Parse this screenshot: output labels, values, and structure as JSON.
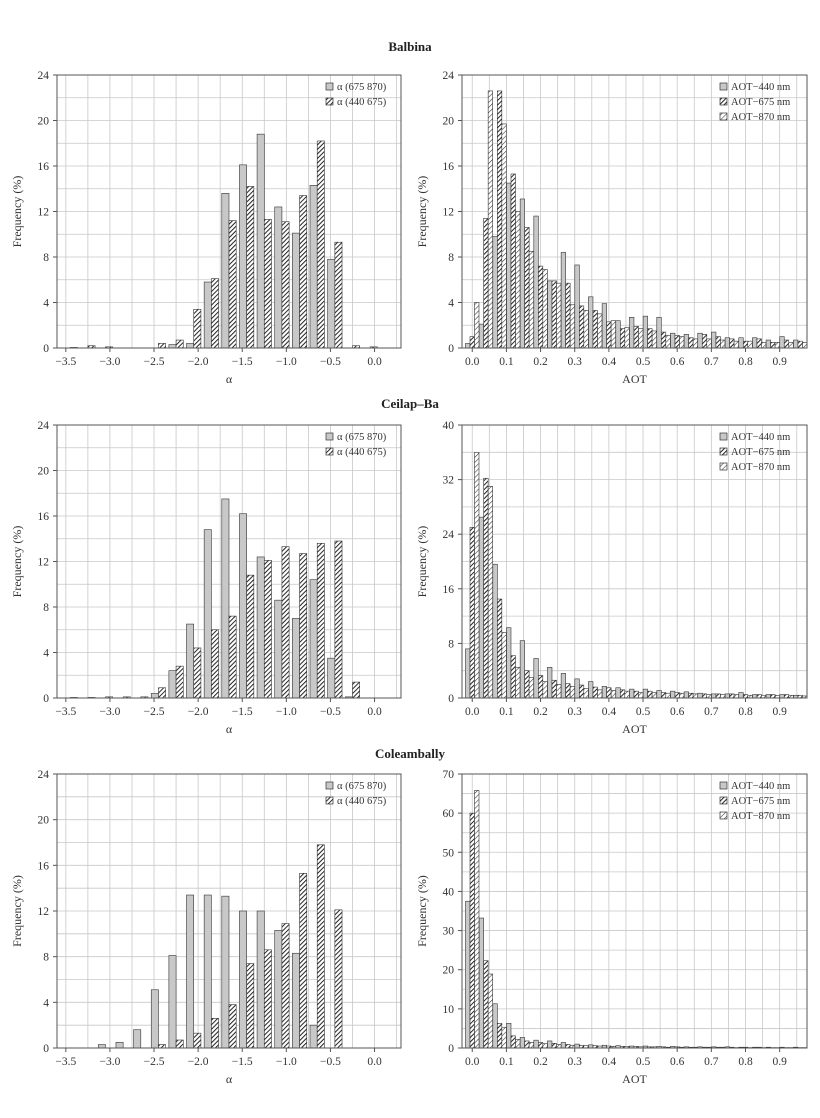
{
  "figure": {
    "sites": [
      "Balbina",
      "Ceilap–Ba",
      "Coleambally"
    ]
  },
  "colors": {
    "grid": "#c8c8c8",
    "axis": "#555555",
    "bar_solid": "#c8c8c8",
    "bar_stroke": "#333333"
  },
  "chart_data": [
    {
      "type": "bar",
      "panel": "Balbina-alpha",
      "xlabel": "α",
      "ylabel": "Frequency (%)",
      "xlim": [
        -3.6,
        0.3
      ],
      "ylim": [
        0,
        24
      ],
      "xticks": [
        -3.5,
        -3.0,
        -2.5,
        -2.0,
        -1.5,
        -1.0,
        -0.5,
        0.0
      ],
      "xtick_labels": [
        "−3.5",
        "−3.0",
        "−2.5",
        "−2.0",
        "−1.5",
        "−1.0",
        "−0.5",
        "0.0"
      ],
      "yticks": [
        0,
        4,
        8,
        12,
        16,
        20,
        24
      ],
      "legend_position": "top-right",
      "x": [
        -3.45,
        -3.25,
        -3.05,
        -2.85,
        -2.65,
        -2.45,
        -2.25,
        -2.05,
        -1.85,
        -1.65,
        -1.45,
        -1.25,
        -1.05,
        -0.85,
        -0.65,
        -0.45,
        -0.25,
        -0.05,
        0.15
      ],
      "series": [
        {
          "name": "α (675 870)",
          "pattern": "solid",
          "values": [
            0,
            0,
            0,
            0,
            0,
            0,
            0.3,
            0.4,
            5.8,
            13.6,
            16.1,
            18.8,
            12.4,
            10.1,
            14.3,
            7.8,
            0,
            0,
            0
          ]
        },
        {
          "name": "α (440 675)",
          "pattern": "hatch-dense",
          "values": [
            0.05,
            0.2,
            0.1,
            0,
            0,
            0.4,
            0.7,
            3.4,
            6.1,
            11.2,
            14.2,
            11.3,
            11.1,
            13.4,
            18.2,
            9.3,
            0.2,
            0.1,
            0
          ]
        }
      ]
    },
    {
      "type": "bar",
      "panel": "Balbina-aot",
      "xlabel": "AOT",
      "ylabel": "Frequency (%)",
      "xlim": [
        -0.03,
        0.98
      ],
      "ylim": [
        0,
        24
      ],
      "xticks": [
        0,
        0.1,
        0.2,
        0.3,
        0.4,
        0.5,
        0.6,
        0.7,
        0.8,
        0.9
      ],
      "xtick_labels": [
        "0.0",
        "0.1",
        "0.2",
        "0.3",
        "0.4",
        "0.5",
        "0.6",
        "0.7",
        "0.8",
        "0.9"
      ],
      "yticks": [
        0,
        4,
        8,
        12,
        16,
        20,
        24
      ],
      "legend_position": "top-right",
      "x": [
        0.0,
        0.04,
        0.08,
        0.12,
        0.16,
        0.2,
        0.24,
        0.28,
        0.32,
        0.36,
        0.4,
        0.44,
        0.48,
        0.52,
        0.56,
        0.6,
        0.64,
        0.68,
        0.72,
        0.76,
        0.8,
        0.84,
        0.88,
        0.92,
        0.96
      ],
      "series": [
        {
          "name": "AOT−440 nm",
          "pattern": "solid",
          "values": [
            0.4,
            2.1,
            9.8,
            14.5,
            13.1,
            11.6,
            5.9,
            8.4,
            7.3,
            4.5,
            3.9,
            2.4,
            2.7,
            2.8,
            2.7,
            1.3,
            1.2,
            1.3,
            1.4,
            0.9,
            0.9,
            0.9,
            0.7,
            1.0,
            0.7
          ]
        },
        {
          "name": "AOT−675 nm",
          "pattern": "hatch-dense",
          "values": [
            1.0,
            11.4,
            22.6,
            15.3,
            10.6,
            7.2,
            5.9,
            5.7,
            3.7,
            3.3,
            2.3,
            1.7,
            1.9,
            1.7,
            1.4,
            1.1,
            0.9,
            1.2,
            1.0,
            0.8,
            0.6,
            0.8,
            0.5,
            0.7,
            0.6
          ]
        },
        {
          "name": "AOT−870 nm",
          "pattern": "hatch-sparse",
          "values": [
            4.0,
            22.6,
            19.7,
            12.0,
            8.5,
            6.9,
            5.7,
            3.8,
            3.3,
            3.0,
            2.4,
            1.8,
            1.7,
            1.5,
            1.1,
            1.0,
            0.8,
            0.8,
            0.7,
            0.6,
            0.6,
            0.5,
            0.5,
            0.5,
            0.5
          ]
        }
      ]
    },
    {
      "type": "bar",
      "panel": "Ceilap-alpha",
      "xlabel": "α",
      "ylabel": "Frequency (%)",
      "xlim": [
        -3.6,
        0.3
      ],
      "ylim": [
        0,
        24
      ],
      "xticks": [
        -3.5,
        -3.0,
        -2.5,
        -2.0,
        -1.5,
        -1.0,
        -0.5,
        0.0
      ],
      "xtick_labels": [
        "−3.5",
        "−3.0",
        "−2.5",
        "−2.0",
        "−1.5",
        "−1.0",
        "−0.5",
        "0.0"
      ],
      "yticks": [
        0,
        4,
        8,
        12,
        16,
        20,
        24
      ],
      "legend_position": "top-right",
      "x": [
        -3.45,
        -3.25,
        -3.05,
        -2.85,
        -2.65,
        -2.45,
        -2.25,
        -2.05,
        -1.85,
        -1.65,
        -1.45,
        -1.25,
        -1.05,
        -0.85,
        -0.65,
        -0.45,
        -0.25,
        -0.05,
        0.15
      ],
      "series": [
        {
          "name": "α (675 870)",
          "pattern": "solid",
          "values": [
            0,
            0,
            0,
            0,
            0,
            0.4,
            2.4,
            6.5,
            14.8,
            17.5,
            16.2,
            12.4,
            8.6,
            7.0,
            10.4,
            3.5,
            0.1,
            0,
            0
          ]
        },
        {
          "name": "α (440 675)",
          "pattern": "hatch-dense",
          "values": [
            0.05,
            0.05,
            0.1,
            0.1,
            0.1,
            0.9,
            2.8,
            4.4,
            6.0,
            7.2,
            10.8,
            12.1,
            13.3,
            12.7,
            13.6,
            13.8,
            1.4,
            0,
            0
          ]
        }
      ]
    },
    {
      "type": "bar",
      "panel": "Ceilap-aot",
      "xlabel": "AOT",
      "ylabel": "Frequency (%)",
      "xlim": [
        -0.03,
        0.98
      ],
      "ylim": [
        0,
        40
      ],
      "xticks": [
        0,
        0.1,
        0.2,
        0.3,
        0.4,
        0.5,
        0.6,
        0.7,
        0.8,
        0.9
      ],
      "xtick_labels": [
        "0.0",
        "0.1",
        "0.2",
        "0.3",
        "0.4",
        "0.5",
        "0.6",
        "0.7",
        "0.8",
        "0.9"
      ],
      "yticks": [
        0,
        8,
        16,
        24,
        32,
        40
      ],
      "legend_position": "top-right",
      "x": [
        0.0,
        0.04,
        0.08,
        0.12,
        0.16,
        0.2,
        0.24,
        0.28,
        0.32,
        0.36,
        0.4,
        0.44,
        0.48,
        0.52,
        0.56,
        0.6,
        0.64,
        0.68,
        0.72,
        0.76,
        0.8,
        0.84,
        0.88,
        0.92,
        0.96
      ],
      "series": [
        {
          "name": "AOT−440 nm",
          "pattern": "solid",
          "values": [
            7.2,
            26.5,
            19.6,
            10.3,
            8.4,
            5.8,
            4.5,
            3.6,
            2.8,
            2.4,
            1.7,
            1.5,
            1.3,
            1.3,
            1.1,
            1.0,
            0.9,
            0.7,
            0.6,
            0.6,
            0.8,
            0.5,
            0.5,
            0.5,
            0.4
          ]
        },
        {
          "name": "AOT−675 nm",
          "pattern": "hatch-dense",
          "values": [
            25.0,
            32.2,
            14.5,
            6.2,
            4.0,
            3.3,
            2.6,
            2.1,
            1.9,
            1.6,
            1.5,
            1.2,
            1.0,
            1.0,
            0.8,
            0.8,
            0.7,
            0.6,
            0.6,
            0.6,
            0.5,
            0.5,
            0.5,
            0.5,
            0.4
          ]
        },
        {
          "name": "AOT−870 nm",
          "pattern": "hatch-sparse",
          "values": [
            36.0,
            31.0,
            9.6,
            4.5,
            3.0,
            2.4,
            2.0,
            1.7,
            1.4,
            1.2,
            1.1,
            1.0,
            0.8,
            0.8,
            0.7,
            0.7,
            0.6,
            0.5,
            0.5,
            0.5,
            0.4,
            0.4,
            0.4,
            0.4,
            0.3
          ]
        }
      ]
    },
    {
      "type": "bar",
      "panel": "Coleambally-alpha",
      "xlabel": "α",
      "ylabel": "Frequency (%)",
      "xlim": [
        -3.6,
        0.3
      ],
      "ylim": [
        0,
        24
      ],
      "xticks": [
        -3.5,
        -3.0,
        -2.5,
        -2.0,
        -1.5,
        -1.0,
        -0.5,
        0.0
      ],
      "xtick_labels": [
        "−3.5",
        "−3.0",
        "−2.5",
        "−2.0",
        "−1.5",
        "−1.0",
        "−0.5",
        "0.0"
      ],
      "yticks": [
        0,
        4,
        8,
        12,
        16,
        20,
        24
      ],
      "legend_position": "top-right",
      "x": [
        -3.45,
        -3.25,
        -3.05,
        -2.85,
        -2.65,
        -2.45,
        -2.25,
        -2.05,
        -1.85,
        -1.65,
        -1.45,
        -1.25,
        -1.05,
        -0.85,
        -0.65,
        -0.45,
        -0.25,
        -0.05,
        0.15
      ],
      "series": [
        {
          "name": "α (675 870)",
          "pattern": "solid",
          "values": [
            0,
            0,
            0.3,
            0.5,
            1.6,
            5.1,
            8.1,
            13.4,
            13.4,
            13.3,
            12.0,
            12.0,
            10.3,
            8.3,
            2.0,
            0,
            0,
            0,
            0
          ]
        },
        {
          "name": "α (440 675)",
          "pattern": "hatch-dense",
          "values": [
            0,
            0,
            0,
            0,
            0,
            0.3,
            0.7,
            1.3,
            2.6,
            3.8,
            7.4,
            8.6,
            10.9,
            15.3,
            17.8,
            12.1,
            0,
            0,
            0
          ]
        }
      ]
    },
    {
      "type": "bar",
      "panel": "Coleambally-aot",
      "xlabel": "AOT",
      "ylabel": "Frequency (%)",
      "xlim": [
        -0.03,
        0.98
      ],
      "ylim": [
        0,
        70
      ],
      "xticks": [
        0,
        0.1,
        0.2,
        0.3,
        0.4,
        0.5,
        0.6,
        0.7,
        0.8,
        0.9
      ],
      "xtick_labels": [
        "0.0",
        "0.1",
        "0.2",
        "0.3",
        "0.4",
        "0.5",
        "0.6",
        "0.7",
        "0.8",
        "0.9"
      ],
      "yticks": [
        0,
        10,
        20,
        30,
        40,
        50,
        60,
        70
      ],
      "legend_position": "top-right",
      "x": [
        0.0,
        0.04,
        0.08,
        0.12,
        0.16,
        0.2,
        0.24,
        0.28,
        0.32,
        0.36,
        0.4,
        0.44,
        0.48,
        0.52,
        0.56,
        0.6,
        0.64,
        0.68,
        0.72,
        0.76,
        0.8,
        0.84,
        0.88,
        0.92,
        0.96
      ],
      "series": [
        {
          "name": "AOT−440 nm",
          "pattern": "solid",
          "values": [
            37.5,
            33.2,
            11.3,
            6.3,
            2.7,
            2.0,
            1.8,
            1.4,
            1.0,
            0.8,
            0.7,
            0.6,
            0.5,
            0.5,
            0.4,
            0.4,
            0.3,
            0.3,
            0.3,
            0.3,
            0.2,
            0.2,
            0.2,
            0.2,
            0.2
          ]
        },
        {
          "name": "AOT−675 nm",
          "pattern": "hatch-dense",
          "values": [
            60.0,
            22.3,
            6.3,
            3.1,
            1.8,
            1.4,
            1.2,
            0.9,
            0.7,
            0.6,
            0.5,
            0.4,
            0.4,
            0.3,
            0.3,
            0.3,
            0.2,
            0.2,
            0.2,
            0.2,
            0.2,
            0.2,
            0.1,
            0.1,
            0.1
          ]
        },
        {
          "name": "AOT−870 nm",
          "pattern": "hatch-sparse",
          "values": [
            65.8,
            18.9,
            5.3,
            2.2,
            1.4,
            1.1,
            0.9,
            0.7,
            0.6,
            0.5,
            0.4,
            0.4,
            0.3,
            0.3,
            0.2,
            0.2,
            0.2,
            0.2,
            0.2,
            0.1,
            0.1,
            0.1,
            0.1,
            0.1,
            0.1
          ]
        }
      ]
    }
  ]
}
